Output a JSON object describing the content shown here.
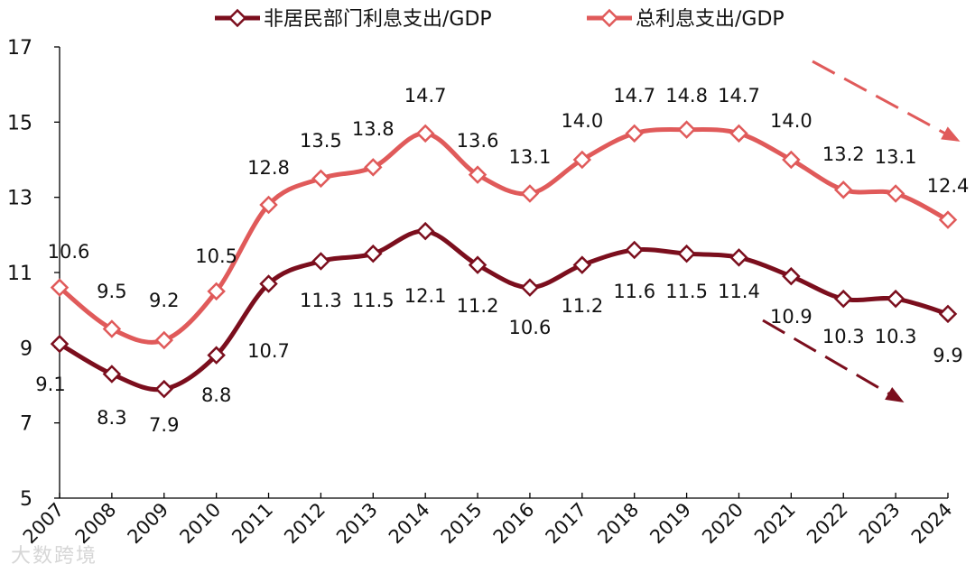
{
  "chart_data": {
    "type": "line",
    "title": "",
    "xlabel": "",
    "ylabel": "",
    "ylim": [
      5,
      17
    ],
    "yticks": [
      5,
      7,
      9,
      11,
      13,
      15,
      17
    ],
    "categories": [
      "2007",
      "2008",
      "2009",
      "2010",
      "2011",
      "2012",
      "2013",
      "2014",
      "2015",
      "2016",
      "2017",
      "2018",
      "2019",
      "2020",
      "2021",
      "2022",
      "2023",
      "2024"
    ],
    "grid": false,
    "legend_position": "top",
    "series": [
      {
        "name": "非居民部门利息支出/GDP",
        "color": "#7b0e1d",
        "values": [
          9.1,
          8.3,
          7.9,
          8.8,
          10.7,
          11.3,
          11.5,
          12.1,
          11.2,
          10.6,
          11.2,
          11.6,
          11.5,
          11.4,
          10.9,
          10.3,
          10.3,
          9.9
        ]
      },
      {
        "name": "总利息支出/GDP",
        "color": "#e05a5a",
        "values": [
          10.6,
          9.5,
          9.2,
          10.5,
          12.8,
          13.5,
          13.8,
          14.7,
          13.6,
          13.1,
          14.0,
          14.7,
          14.8,
          14.7,
          14.0,
          13.2,
          13.1,
          12.4
        ]
      }
    ],
    "annotations": [
      "downward dashed arrow (total)",
      "downward dashed arrow (non-resident)"
    ]
  },
  "watermark": "大数跨境"
}
